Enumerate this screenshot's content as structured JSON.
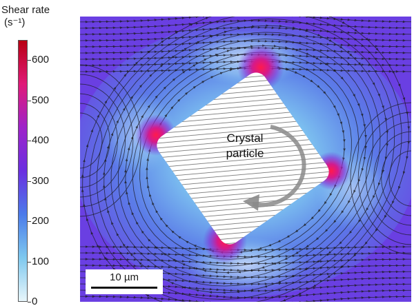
{
  "colorbar": {
    "title_line1": "Shear rate",
    "title_line2": "(s⁻¹)",
    "ticks": [
      "600",
      "500",
      "400",
      "300",
      "200",
      "100",
      "0"
    ],
    "min": 0,
    "max": 650,
    "colors": [
      "#e8f6fb",
      "#7ec8ee",
      "#4b7bea",
      "#6a2fe0",
      "#9e23c9",
      "#e01a78",
      "#b80012"
    ]
  },
  "particle": {
    "label_line1": "Crystal",
    "label_line2": "particle",
    "rotation_icon": "clockwise-arrow-icon"
  },
  "scalebar": {
    "label": "10 µm"
  }
}
